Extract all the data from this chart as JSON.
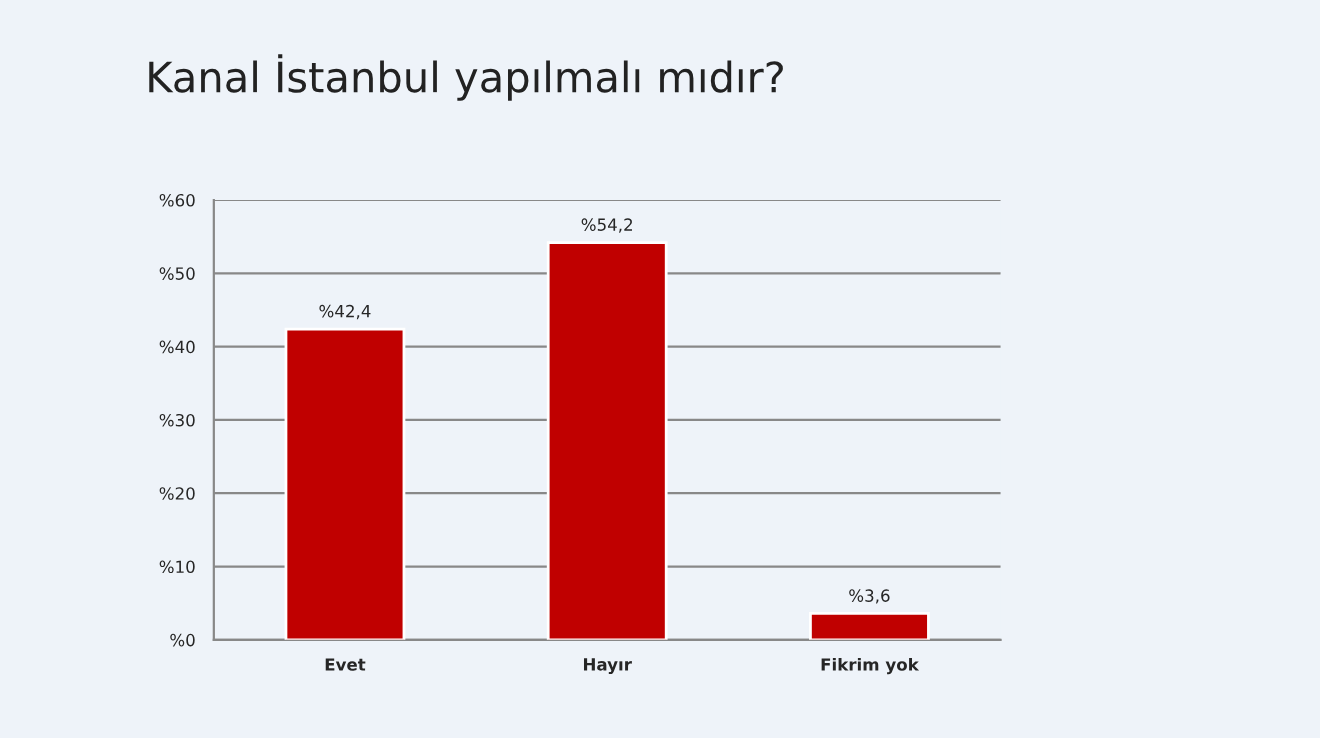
{
  "chart_data": {
    "type": "bar",
    "title": "Kanal İstanbul yapılmalı mıdır?",
    "categories": [
      "Evet",
      "Hayır",
      "Fikrim yok"
    ],
    "values": [
      42.4,
      54.2,
      3.6
    ],
    "value_labels": [
      "%42,4",
      "%54,2",
      "%3,6"
    ],
    "color": "#c00000",
    "ylim": [
      0,
      60
    ],
    "yticks": [
      {
        "value": 0,
        "label": "%0"
      },
      {
        "value": 10,
        "label": "%10"
      },
      {
        "value": 20,
        "label": "%20"
      },
      {
        "value": 30,
        "label": "%30"
      },
      {
        "value": 40,
        "label": "%40"
      },
      {
        "value": 50,
        "label": "%50"
      },
      {
        "value": 60,
        "label": "%60"
      }
    ],
    "grid": "y"
  }
}
